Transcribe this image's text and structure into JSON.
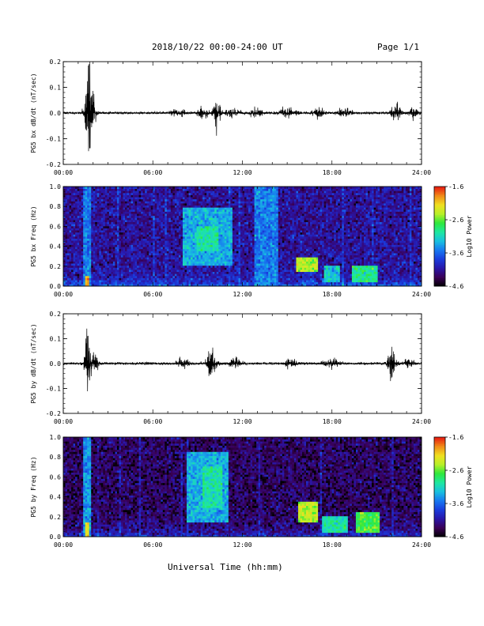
{
  "header": {
    "date_text": "2018/10/22  00:00-24:00 UT",
    "page_text": "Page 1/1"
  },
  "xlabel": "Universal Time (hh:mm)",
  "colors": {
    "trace": "#000000",
    "colormap": [
      "#000000",
      "#3a0055",
      "#2a16a8",
      "#1a3cdc",
      "#1878f0",
      "#19c0e0",
      "#1ee8a0",
      "#2ee83c",
      "#b8f028",
      "#f0e020",
      "#f08c18",
      "#e81a10"
    ]
  },
  "chart_data": [
    {
      "type": "line",
      "ylabel": "PG5 bx dB/dt (nT/sec)",
      "x_ticks": [
        "00:00",
        "06:00",
        "12:00",
        "18:00",
        "24:00"
      ],
      "xlim_hours": [
        0,
        24
      ],
      "ylim": [
        -0.2,
        0.2
      ],
      "y_ticks": [
        "0.2",
        "0.1",
        "0.0",
        "-0.1",
        "-0.2"
      ],
      "y_tick_values": [
        0.2,
        0.1,
        0.0,
        -0.1,
        -0.2
      ],
      "baseline_noise": 0.005,
      "bursts": [
        {
          "t": 1.65,
          "amp": 0.19,
          "width": 0.22
        },
        {
          "t": 1.9,
          "amp": 0.06,
          "width": 0.3
        },
        {
          "t": 7.7,
          "amp": 0.015,
          "width": 0.4
        },
        {
          "t": 9.3,
          "amp": 0.022,
          "width": 0.35
        },
        {
          "t": 10.3,
          "amp": 0.055,
          "width": 0.25
        },
        {
          "t": 11.3,
          "amp": 0.02,
          "width": 0.5
        },
        {
          "t": 12.9,
          "amp": 0.02,
          "width": 0.4
        },
        {
          "t": 15.0,
          "amp": 0.018,
          "width": 0.5
        },
        {
          "t": 17.2,
          "amp": 0.022,
          "width": 0.4
        },
        {
          "t": 18.8,
          "amp": 0.015,
          "width": 0.5
        },
        {
          "t": 22.3,
          "amp": 0.04,
          "width": 0.3
        },
        {
          "t": 23.4,
          "amp": 0.02,
          "width": 0.3
        }
      ]
    },
    {
      "type": "heatmap",
      "ylabel": "PG5 bx Freq (Hz)",
      "x_ticks": [
        "00:00",
        "06:00",
        "12:00",
        "18:00",
        "24:00"
      ],
      "xlim_hours": [
        0,
        24
      ],
      "ylim": [
        0.0,
        1.0
      ],
      "y_ticks": [
        "1.0",
        "0.8",
        "0.6",
        "0.4",
        "0.2",
        "0.0"
      ],
      "y_tick_values": [
        1.0,
        0.8,
        0.6,
        0.4,
        0.2,
        0.0
      ],
      "colorbar_label": "Log10 Power",
      "colorbar_ticks": [
        "-1.6",
        "-2.6",
        "-3.6",
        "-4.6"
      ],
      "colorbar_tick_values": [
        -1.6,
        -2.6,
        -3.6,
        -4.6
      ],
      "clim": [
        -4.6,
        -1.6
      ],
      "background_level": -4.1,
      "features": [
        {
          "t0": 1.3,
          "t1": 1.9,
          "f0": 0.0,
          "f1": 1.0,
          "level": -3.5
        },
        {
          "t0": 1.45,
          "t1": 1.75,
          "f0": 0.0,
          "f1": 0.1,
          "level": -2.0
        },
        {
          "t0": 8.0,
          "t1": 11.3,
          "f0": 0.2,
          "f1": 0.8,
          "level": -3.3
        },
        {
          "t0": 9.0,
          "t1": 10.4,
          "f0": 0.35,
          "f1": 0.6,
          "level": -3.0
        },
        {
          "t0": 12.8,
          "t1": 14.4,
          "f0": 0.0,
          "f1": 1.0,
          "level": -3.5
        },
        {
          "t0": 15.6,
          "t1": 17.0,
          "f0": 0.15,
          "f1": 0.3,
          "level": -2.4
        },
        {
          "t0": 17.5,
          "t1": 18.5,
          "f0": 0.05,
          "f1": 0.2,
          "level": -3.2
        },
        {
          "t0": 19.4,
          "t1": 21.0,
          "f0": 0.05,
          "f1": 0.2,
          "level": -2.9
        }
      ]
    },
    {
      "type": "line",
      "ylabel": "PG5 by dB/dt (nT/sec)",
      "x_ticks": [
        "00:00",
        "06:00",
        "12:00",
        "18:00",
        "24:00"
      ],
      "xlim_hours": [
        0,
        24
      ],
      "ylim": [
        -0.2,
        0.2
      ],
      "y_ticks": [
        "0.2",
        "0.1",
        "0.0",
        "-0.1",
        "-0.2"
      ],
      "y_tick_values": [
        0.2,
        0.1,
        0.0,
        -0.1,
        -0.2
      ],
      "baseline_noise": 0.005,
      "bursts": [
        {
          "t": 1.65,
          "amp": 0.14,
          "width": 0.22
        },
        {
          "t": 2.0,
          "amp": 0.05,
          "width": 0.3
        },
        {
          "t": 8.0,
          "amp": 0.015,
          "width": 0.4
        },
        {
          "t": 9.9,
          "amp": 0.07,
          "width": 0.3
        },
        {
          "t": 11.5,
          "amp": 0.02,
          "width": 0.4
        },
        {
          "t": 15.2,
          "amp": 0.02,
          "width": 0.4
        },
        {
          "t": 18.0,
          "amp": 0.018,
          "width": 0.5
        },
        {
          "t": 22.0,
          "amp": 0.08,
          "width": 0.25
        },
        {
          "t": 23.2,
          "amp": 0.03,
          "width": 0.3
        }
      ]
    },
    {
      "type": "heatmap",
      "ylabel": "PG5 by Freq (Hz)",
      "x_ticks": [
        "00:00",
        "06:00",
        "12:00",
        "18:00",
        "24:00"
      ],
      "xlim_hours": [
        0,
        24
      ],
      "ylim": [
        0.0,
        1.0
      ],
      "y_ticks": [
        "1.0",
        "0.8",
        "0.6",
        "0.4",
        "0.2",
        "0.0"
      ],
      "y_tick_values": [
        1.0,
        0.8,
        0.6,
        0.4,
        0.2,
        0.0
      ],
      "colorbar_label": "Log10 Power",
      "colorbar_ticks": [
        "-1.6",
        "-2.6",
        "-3.6",
        "-4.6"
      ],
      "colorbar_tick_values": [
        -1.6,
        -2.6,
        -3.6,
        -4.6
      ],
      "clim": [
        -4.6,
        -1.6
      ],
      "background_level": -4.3,
      "features": [
        {
          "t0": 1.3,
          "t1": 1.9,
          "f0": 0.0,
          "f1": 1.0,
          "level": -3.4
        },
        {
          "t0": 1.45,
          "t1": 1.75,
          "f0": 0.0,
          "f1": 0.15,
          "level": -2.1
        },
        {
          "t0": 8.3,
          "t1": 11.1,
          "f0": 0.15,
          "f1": 0.85,
          "level": -3.3
        },
        {
          "t0": 9.4,
          "t1": 10.6,
          "f0": 0.3,
          "f1": 0.7,
          "level": -3.0
        },
        {
          "t0": 15.7,
          "t1": 17.1,
          "f0": 0.15,
          "f1": 0.35,
          "level": -2.4
        },
        {
          "t0": 17.4,
          "t1": 19.0,
          "f0": 0.05,
          "f1": 0.2,
          "level": -3.0
        },
        {
          "t0": 19.6,
          "t1": 21.2,
          "f0": 0.05,
          "f1": 0.25,
          "level": -2.7
        }
      ]
    }
  ]
}
